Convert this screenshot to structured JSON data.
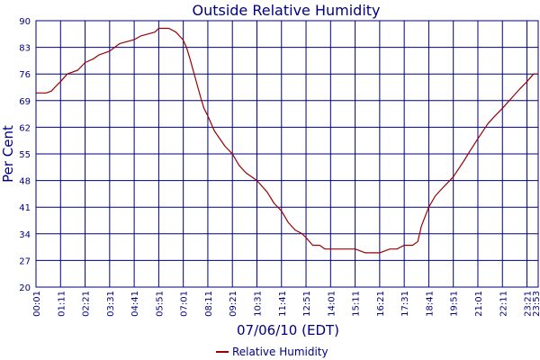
{
  "colors": {
    "background": "#ffffff",
    "grid": "#000080",
    "text": "#000080",
    "series": "#990000"
  },
  "chart_data": {
    "type": "line",
    "title": "Outside Relative Humidity",
    "xlabel": "07/06/10 (EDT)",
    "ylabel": "Per Cent",
    "ylim": [
      20,
      90
    ],
    "yticks": [
      "90",
      "83",
      "76",
      "69",
      "62",
      "55",
      "48",
      "41",
      "34",
      "27",
      "20"
    ],
    "xlim": [
      "00:01",
      "23:53"
    ],
    "xticks": [
      "00:01",
      "01:11",
      "02:21",
      "03:31",
      "04:41",
      "05:51",
      "07:01",
      "08:11",
      "09:21",
      "10:31",
      "11:41",
      "12:51",
      "14:01",
      "15:11",
      "16:21",
      "17:31",
      "18:41",
      "19:51",
      "21:01",
      "22:11",
      "23:21",
      "23:53"
    ],
    "grid": true,
    "legend": {
      "position": "bottom-center"
    },
    "series": [
      {
        "name": "Relative Humidity",
        "color": "#990000",
        "x": [
          "00:01",
          "00:30",
          "00:45",
          "01:00",
          "01:11",
          "01:30",
          "02:00",
          "02:21",
          "02:45",
          "03:00",
          "03:31",
          "04:00",
          "04:20",
          "04:41",
          "05:00",
          "05:20",
          "05:40",
          "05:51",
          "06:20",
          "06:40",
          "07:00",
          "07:10",
          "07:20",
          "07:35",
          "07:50",
          "08:00",
          "08:11",
          "08:30",
          "09:00",
          "09:21",
          "09:40",
          "10:00",
          "10:31",
          "11:00",
          "11:20",
          "11:41",
          "12:00",
          "12:20",
          "12:40",
          "12:51",
          "13:10",
          "13:30",
          "13:45",
          "14:01",
          "14:20",
          "14:40",
          "15:11",
          "15:40",
          "16:00",
          "16:21",
          "16:50",
          "17:10",
          "17:31",
          "17:55",
          "18:10",
          "18:20",
          "18:41",
          "19:00",
          "19:20",
          "19:51",
          "20:20",
          "20:40",
          "21:01",
          "21:30",
          "21:50",
          "22:11",
          "22:40",
          "23:00",
          "23:21",
          "23:40",
          "23:53"
        ],
        "values": [
          71,
          71,
          71.5,
          73,
          74,
          76,
          77,
          79,
          80,
          81,
          82,
          84,
          84.5,
          85,
          86,
          86.5,
          87,
          88,
          88,
          87,
          85,
          83,
          80,
          75,
          70,
          67,
          65,
          61,
          57,
          55,
          52,
          50,
          48,
          45,
          42,
          40,
          37,
          35,
          34,
          33,
          31,
          31,
          30,
          30,
          30,
          30,
          30,
          29,
          29,
          29,
          30,
          30,
          31,
          31,
          32,
          36,
          41,
          44,
          46,
          49,
          53,
          56,
          59,
          63,
          65,
          67,
          70,
          72,
          74,
          76,
          76
        ]
      }
    ]
  }
}
